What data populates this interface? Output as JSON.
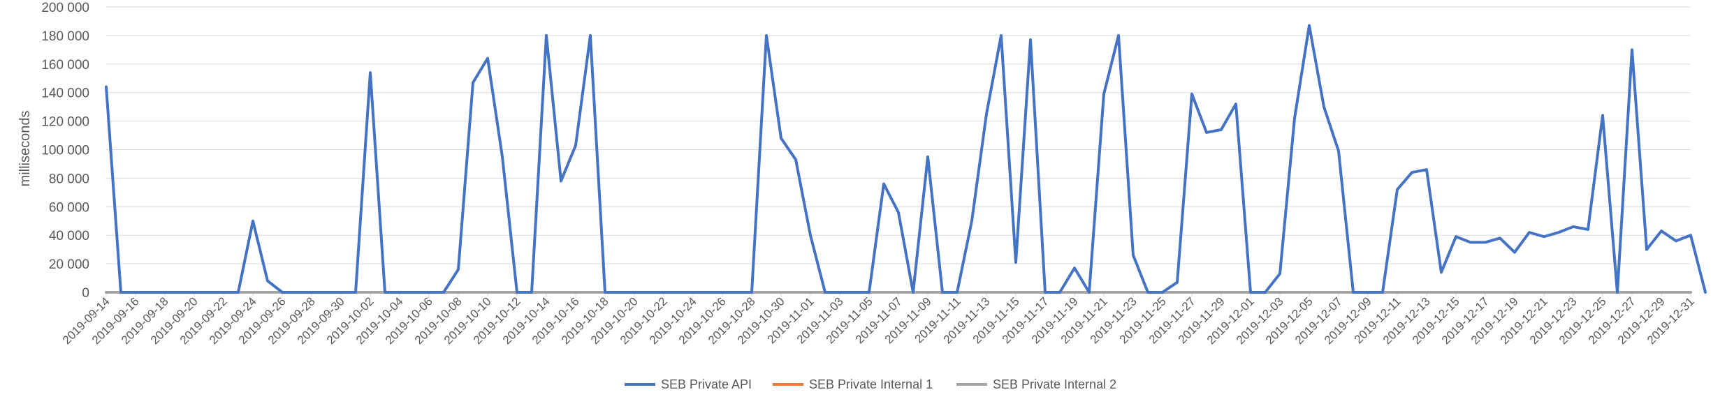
{
  "chart_data": {
    "type": "line",
    "title": "",
    "xlabel": "",
    "ylabel": "milliseconds",
    "ylim": [
      0,
      200000
    ],
    "ytick_labels": [
      "0",
      "20 000",
      "40 000",
      "60 000",
      "80 000",
      "100 000",
      "120 000",
      "140 000",
      "160 000",
      "180 000",
      "200 000"
    ],
    "x_start": "2019-09-14",
    "x_end": "2019-12-31",
    "xtick_labels": [
      "2019-09-14",
      "2019-09-16",
      "2019-09-18",
      "2019-09-20",
      "2019-09-22",
      "2019-09-24",
      "2019-09-26",
      "2019-09-28",
      "2019-09-30",
      "2019-10-02",
      "2019-10-04",
      "2019-10-06",
      "2019-10-08",
      "2019-10-10",
      "2019-10-12",
      "2019-10-14",
      "2019-10-16",
      "2019-10-18",
      "2019-10-20",
      "2019-10-22",
      "2019-10-24",
      "2019-10-26",
      "2019-10-28",
      "2019-10-30",
      "2019-11-01",
      "2019-11-03",
      "2019-11-05",
      "2019-11-07",
      "2019-11-09",
      "2019-11-11",
      "2019-11-13",
      "2019-11-15",
      "2019-11-17",
      "2019-11-19",
      "2019-11-21",
      "2019-11-23",
      "2019-11-25",
      "2019-11-27",
      "2019-11-29",
      "2019-12-01",
      "2019-12-03",
      "2019-12-05",
      "2019-12-07",
      "2019-12-09",
      "2019-12-11",
      "2019-12-13",
      "2019-12-15",
      "2019-12-17",
      "2019-12-19",
      "2019-12-21",
      "2019-12-23",
      "2019-12-25",
      "2019-12-27",
      "2019-12-29",
      "2019-12-31"
    ],
    "grid": true,
    "legend_position": "bottom",
    "series": [
      {
        "name": "SEB Private API",
        "color": "#4472C4",
        "values": [
          144000,
          0,
          0,
          0,
          0,
          0,
          0,
          0,
          0,
          0,
          50000,
          8000,
          0,
          0,
          0,
          0,
          0,
          0,
          154000,
          0,
          0,
          0,
          0,
          0,
          16000,
          147000,
          164000,
          95000,
          0,
          0,
          180000,
          78000,
          103000,
          180000,
          0,
          0,
          0,
          0,
          0,
          0,
          0,
          0,
          0,
          0,
          0,
          180000,
          108000,
          93000,
          40000,
          0,
          0,
          0,
          0,
          76000,
          56000,
          0,
          95000,
          0,
          0,
          50000,
          125000,
          180000,
          21000,
          177000,
          0,
          0,
          17000,
          0,
          139000,
          180000,
          26000,
          0,
          0,
          7000,
          139000,
          112000,
          114000,
          132000,
          0,
          0,
          13000,
          122000,
          187000,
          130000,
          99000,
          0,
          0,
          0,
          72000,
          84000,
          86000,
          14000,
          39000,
          35000,
          35000,
          38000,
          28000,
          42000,
          39000,
          42000,
          46000,
          44000,
          124000,
          0,
          170000,
          30000,
          43000,
          36000,
          40000,
          0
        ]
      },
      {
        "name": "SEB Private Internal 1",
        "color": "#ED7D31",
        "constant_value": 0
      },
      {
        "name": "SEB Private Internal 2",
        "color": "#A5A5A5",
        "constant_value": 0
      }
    ]
  }
}
